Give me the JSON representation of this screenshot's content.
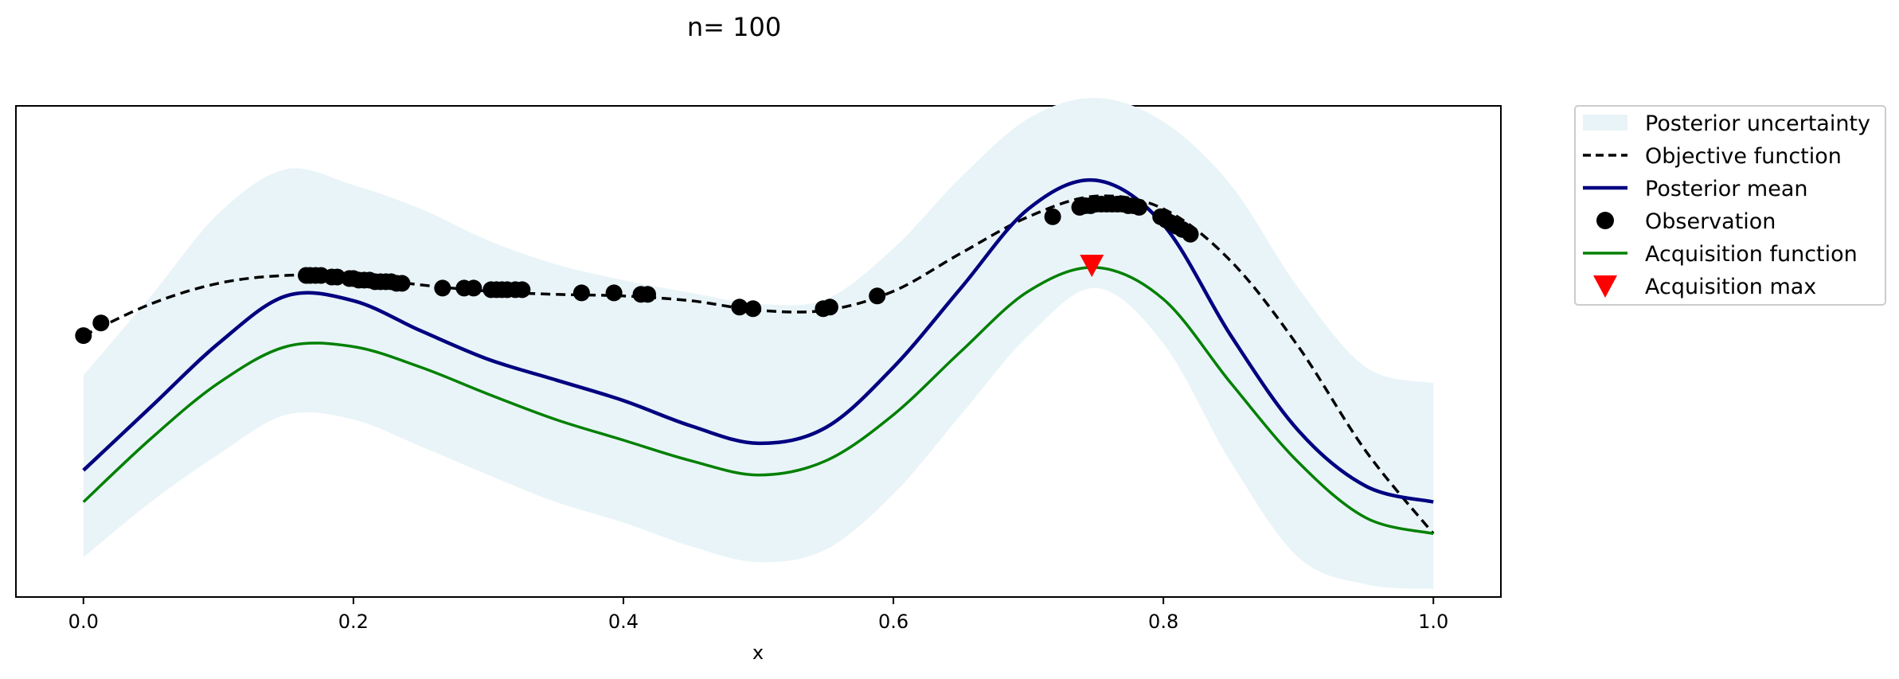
{
  "chart_data": {
    "type": "line",
    "title": "n= 100",
    "xlabel": "x",
    "ylabel": "",
    "xlim": [
      -0.05,
      1.05
    ],
    "ylim": [
      -1.6,
      1.5
    ],
    "xticks": [
      "0.0",
      "0.2",
      "0.4",
      "0.6",
      "0.8",
      "1.0"
    ],
    "xtick_values": [
      0.0,
      0.2,
      0.4,
      0.6,
      0.8,
      1.0
    ],
    "yticks_visible": false,
    "grid": false,
    "legend_position": "outside-top-right",
    "colors": {
      "uncertainty": "#e9f4f8",
      "objective": "#000000",
      "mean": "#000080",
      "observation": "#000000",
      "acquisition": "#008000",
      "acq_max": "#ff0000"
    },
    "legend": [
      {
        "key": "uncertainty",
        "label": "Posterior uncertainty",
        "style": "patch"
      },
      {
        "key": "objective",
        "label": "Objective function",
        "style": "dashed"
      },
      {
        "key": "mean",
        "label": "Posterior mean",
        "style": "line"
      },
      {
        "key": "observation",
        "label": "Observation",
        "style": "dot"
      },
      {
        "key": "acquisition",
        "label": "Acquisition function",
        "style": "line"
      },
      {
        "key": "acq_max",
        "label": "Acquisition max",
        "style": "triangle"
      }
    ],
    "x": [
      0.0,
      0.05,
      0.1,
      0.15,
      0.2,
      0.25,
      0.3,
      0.35,
      0.4,
      0.45,
      0.5,
      0.55,
      0.6,
      0.65,
      0.7,
      0.75,
      0.8,
      0.85,
      0.9,
      0.95,
      1.0
    ],
    "series": [
      {
        "key": "objective",
        "name": "Objective function",
        "values": [
          0.05,
          0.25,
          0.38,
          0.43,
          0.42,
          0.37,
          0.33,
          0.31,
          0.3,
          0.27,
          0.21,
          0.21,
          0.33,
          0.57,
          0.8,
          0.93,
          0.85,
          0.52,
          -0.02,
          -0.68,
          -1.2
        ]
      },
      {
        "key": "mean",
        "name": "Posterior mean",
        "values": [
          -0.8,
          -0.4,
          0.0,
          0.3,
          0.27,
          0.08,
          -0.1,
          -0.23,
          -0.36,
          -0.52,
          -0.63,
          -0.53,
          -0.15,
          0.35,
          0.85,
          1.03,
          0.75,
          0.05,
          -0.55,
          -0.9,
          -1.0
        ]
      },
      {
        "key": "acquisition",
        "name": "Acquisition function",
        "values": [
          -1.0,
          -0.6,
          -0.25,
          -0.02,
          -0.02,
          -0.15,
          -0.32,
          -0.48,
          -0.61,
          -0.74,
          -0.83,
          -0.74,
          -0.45,
          -0.05,
          0.33,
          0.48,
          0.28,
          -0.25,
          -0.75,
          -1.1,
          -1.2
        ]
      },
      {
        "key": "upper",
        "name": "",
        "values": [
          -0.2,
          0.3,
          0.82,
          1.1,
          1.0,
          0.85,
          0.65,
          0.5,
          0.4,
          0.32,
          0.25,
          0.28,
          0.6,
          1.05,
          1.42,
          1.55,
          1.4,
          1.0,
          0.35,
          -0.15,
          -0.25
        ]
      },
      {
        "key": "lower",
        "name": "",
        "values": [
          -1.35,
          -1.0,
          -0.7,
          -0.45,
          -0.48,
          -0.65,
          -0.83,
          -1.0,
          -1.13,
          -1.28,
          -1.38,
          -1.3,
          -0.95,
          -0.45,
          0.05,
          0.35,
          0.0,
          -0.75,
          -1.35,
          -1.52,
          -1.55
        ]
      }
    ],
    "observations": {
      "x": [
        0.0,
        0.013,
        0.165,
        0.168,
        0.172,
        0.176,
        0.184,
        0.188,
        0.197,
        0.2,
        0.204,
        0.208,
        0.212,
        0.216,
        0.22,
        0.224,
        0.228,
        0.232,
        0.236,
        0.266,
        0.282,
        0.289,
        0.302,
        0.306,
        0.31,
        0.314,
        0.32,
        0.325,
        0.369,
        0.393,
        0.413,
        0.418,
        0.486,
        0.496,
        0.548,
        0.553,
        0.588,
        0.718,
        0.738,
        0.742,
        0.746,
        0.75,
        0.754,
        0.758,
        0.762,
        0.766,
        0.77,
        0.774,
        0.778,
        0.782,
        0.798,
        0.802,
        0.806,
        0.81,
        0.814,
        0.82
      ],
      "y": [
        0.05,
        0.13,
        0.43,
        0.43,
        0.43,
        0.43,
        0.42,
        0.42,
        0.41,
        0.41,
        0.4,
        0.4,
        0.4,
        0.39,
        0.39,
        0.39,
        0.39,
        0.38,
        0.38,
        0.35,
        0.35,
        0.35,
        0.34,
        0.34,
        0.34,
        0.34,
        0.34,
        0.34,
        0.32,
        0.32,
        0.31,
        0.31,
        0.23,
        0.22,
        0.22,
        0.23,
        0.3,
        0.8,
        0.86,
        0.87,
        0.87,
        0.88,
        0.88,
        0.88,
        0.88,
        0.88,
        0.88,
        0.87,
        0.87,
        0.86,
        0.8,
        0.78,
        0.76,
        0.74,
        0.72,
        0.69
      ]
    },
    "acq_max": {
      "x": 0.747,
      "y": 0.48
    }
  }
}
